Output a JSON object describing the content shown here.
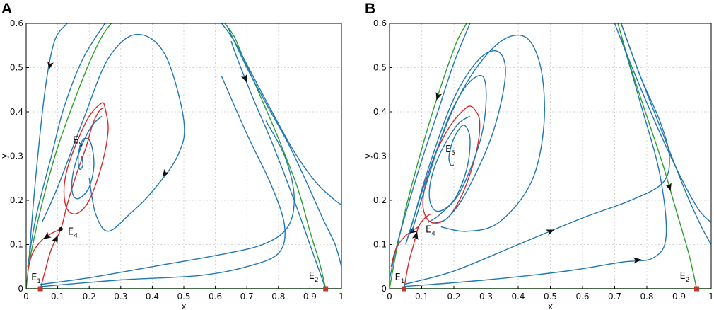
{
  "colors": {
    "trajectory": "#1f77b4",
    "separatrix_red": "#d62728",
    "separatrix_green": "#2ca02c",
    "equilibrium_marker": "#c0392b",
    "grid": "#c8c8c8",
    "axis": "#000000"
  },
  "chart_data": [
    {
      "panel": "A",
      "type": "line",
      "subtype": "phase-portrait",
      "xlabel": "x",
      "ylabel": "y",
      "xlim": [
        0,
        1
      ],
      "ylim": [
        0,
        0.6
      ],
      "xticks": [
        0,
        0.1,
        0.2,
        0.3,
        0.4,
        0.5,
        0.6,
        0.7,
        0.8,
        0.9,
        1
      ],
      "xtick_labels": [
        "0",
        "0.1",
        "0.2",
        "0.3",
        "0.4",
        "0.5",
        "0.6",
        "0.7",
        "0.8",
        "0.9",
        "1"
      ],
      "yticks": [
        0,
        0.1,
        0.2,
        0.3,
        0.4,
        0.5,
        0.6
      ],
      "ytick_labels": [
        "0",
        "0.1",
        "0.2",
        "0.3",
        "0.4",
        "0.5",
        "0.6"
      ],
      "grid": true,
      "annotations": [
        {
          "text": "E",
          "sub": "1",
          "target": [
            0.045,
            0.0
          ]
        },
        {
          "text": "E",
          "sub": "2",
          "target": [
            0.95,
            0.0
          ]
        },
        {
          "text": "E",
          "sub": "4",
          "target": [
            0.11,
            0.135
          ]
        },
        {
          "text": "E",
          "sub": "5",
          "target": [
            0.175,
            0.3
          ]
        }
      ],
      "equilibria": [
        {
          "name": "E1",
          "x": 0.045,
          "y": 0.0,
          "marker": "square"
        },
        {
          "name": "E2",
          "x": 0.95,
          "y": 0.0,
          "marker": "square"
        },
        {
          "name": "E4",
          "x": 0.11,
          "y": 0.135,
          "marker": "dot"
        }
      ],
      "series": [
        {
          "name": "trajectory-far-left",
          "color": "trajectory",
          "x": [
            0.01,
            0.03,
            0.06,
            0.09,
            0.13
          ],
          "y": [
            0.08,
            0.25,
            0.45,
            0.56,
            0.6
          ],
          "arrows": [
            {
              "at": 2,
              "dir": "backward"
            }
          ]
        },
        {
          "name": "trajectory-left-2",
          "color": "trajectory",
          "x": [
            0.005,
            0.02,
            0.04,
            0.08,
            0.12,
            0.18,
            0.25
          ],
          "y": [
            0.05,
            0.12,
            0.19,
            0.3,
            0.41,
            0.52,
            0.6
          ]
        },
        {
          "name": "green-separatrix-left",
          "color": "separatrix_green",
          "x": [
            0.0,
            0.01,
            0.03,
            0.06,
            0.1,
            0.15,
            0.2,
            0.24,
            0.27
          ],
          "y": [
            0.0,
            0.06,
            0.13,
            0.22,
            0.32,
            0.42,
            0.51,
            0.57,
            0.6
          ]
        },
        {
          "name": "red-manifold-E4",
          "color": "separatrix_red",
          "x": [
            0.045,
            0.06,
            0.08,
            0.11,
            0.13,
            0.16,
            0.19,
            0.21,
            0.23,
            0.245
          ],
          "y": [
            0.0,
            0.04,
            0.09,
            0.135,
            0.19,
            0.26,
            0.32,
            0.37,
            0.4,
            0.41
          ],
          "arrows": [
            {
              "at": 2,
              "dir": "forward"
            }
          ]
        },
        {
          "name": "red-manifold-E4-lower",
          "color": "separatrix_red",
          "x": [
            0.005,
            0.02,
            0.05,
            0.08,
            0.11
          ],
          "y": [
            0.04,
            0.08,
            0.11,
            0.125,
            0.135
          ],
          "arrows": [
            {
              "at": 2,
              "dir": "backward"
            }
          ]
        },
        {
          "name": "limit-cycle-red",
          "color": "separatrix_red",
          "x": [
            0.25,
            0.24,
            0.2,
            0.16,
            0.13,
            0.12,
            0.13,
            0.16,
            0.2,
            0.24,
            0.26,
            0.25
          ],
          "y": [
            0.41,
            0.42,
            0.39,
            0.33,
            0.27,
            0.22,
            0.18,
            0.17,
            0.2,
            0.28,
            0.36,
            0.41
          ]
        },
        {
          "name": "spiral-E5",
          "color": "trajectory",
          "x": [
            0.24,
            0.21,
            0.18,
            0.155,
            0.145,
            0.15,
            0.17,
            0.2,
            0.215,
            0.205,
            0.185,
            0.17,
            0.165,
            0.17,
            0.18,
            0.175
          ],
          "y": [
            0.39,
            0.37,
            0.33,
            0.28,
            0.24,
            0.21,
            0.205,
            0.23,
            0.28,
            0.33,
            0.34,
            0.32,
            0.29,
            0.27,
            0.28,
            0.3
          ]
        },
        {
          "name": "trajectory-large-loop",
          "color": "trajectory",
          "x": [
            0.05,
            0.1,
            0.18,
            0.26,
            0.35,
            0.44,
            0.5,
            0.48,
            0.4,
            0.33,
            0.26,
            0.22,
            0.2
          ],
          "y": [
            0.15,
            0.23,
            0.38,
            0.52,
            0.575,
            0.53,
            0.38,
            0.3,
            0.22,
            0.17,
            0.13,
            0.17,
            0.25
          ],
          "arrows": [
            {
              "at": 7,
              "dir": "forward"
            }
          ]
        },
        {
          "name": "trajectory-bottom-1",
          "color": "trajectory",
          "x": [
            0.045,
            0.2,
            0.4,
            0.6,
            0.75,
            0.83,
            0.85,
            0.82,
            0.76
          ],
          "y": [
            0.01,
            0.025,
            0.05,
            0.075,
            0.1,
            0.14,
            0.21,
            0.3,
            0.38
          ]
        },
        {
          "name": "trajectory-bottom-2",
          "color": "trajectory",
          "x": [
            0.045,
            0.3,
            0.55,
            0.7,
            0.8,
            0.82,
            0.78,
            0.7,
            0.62
          ],
          "y": [
            0.005,
            0.02,
            0.03,
            0.05,
            0.08,
            0.14,
            0.23,
            0.35,
            0.48
          ]
        },
        {
          "name": "green-separatrix-right",
          "color": "separatrix_green",
          "x": [
            0.95,
            0.93,
            0.9,
            0.86,
            0.8,
            0.74,
            0.69,
            0.66,
            0.63
          ],
          "y": [
            0.0,
            0.06,
            0.13,
            0.23,
            0.34,
            0.44,
            0.52,
            0.57,
            0.6
          ]
        },
        {
          "name": "trajectory-right-outer",
          "color": "trajectory",
          "x": [
            0.62,
            0.66,
            0.72,
            0.78,
            0.85,
            0.92,
            0.98,
            1.0
          ],
          "y": [
            0.6,
            0.56,
            0.48,
            0.4,
            0.31,
            0.24,
            0.2,
            0.19
          ]
        },
        {
          "name": "trajectory-right-inner",
          "color": "trajectory",
          "x": [
            0.64,
            0.7,
            0.76,
            0.83,
            0.89,
            0.94,
            0.98,
            1.0
          ],
          "y": [
            0.59,
            0.5,
            0.42,
            0.33,
            0.24,
            0.16,
            0.1,
            0.05
          ]
        },
        {
          "name": "trajectory-right-up",
          "color": "trajectory",
          "x": [
            0.95,
            0.9,
            0.85,
            0.78,
            0.72,
            0.67,
            0.65
          ],
          "y": [
            0.0,
            0.1,
            0.2,
            0.33,
            0.43,
            0.52,
            0.56
          ],
          "arrows": [
            {
              "at": 4,
              "dir": "backward"
            }
          ]
        },
        {
          "name": "x-axis-invariant",
          "color": "separatrix_green",
          "x": [
            0.0,
            0.045,
            0.5,
            0.95,
            1.0
          ],
          "y": [
            0.0,
            0.0,
            0.0,
            0.0,
            0.0
          ]
        }
      ]
    },
    {
      "panel": "B",
      "type": "line",
      "subtype": "phase-portrait",
      "xlabel": "x",
      "ylabel": "y",
      "xlim": [
        0,
        1
      ],
      "ylim": [
        0,
        0.6
      ],
      "xticks": [
        0,
        0.1,
        0.2,
        0.3,
        0.4,
        0.5,
        0.6,
        0.7,
        0.8,
        0.9,
        1
      ],
      "xtick_labels": [
        "0",
        "0.1",
        "0.2",
        "0.3",
        "0.4",
        "0.5",
        "0.6",
        "0.7",
        "0.8",
        "0.9",
        "1"
      ],
      "yticks": [
        0,
        0.1,
        0.2,
        0.3,
        0.4,
        0.5,
        0.6
      ],
      "ytick_labels": [
        "0",
        "0.1",
        "0.2",
        "0.3",
        "0.4",
        "0.5",
        "0.6"
      ],
      "grid": true,
      "annotations": [
        {
          "text": "E",
          "sub": "1",
          "target": [
            0.045,
            0.0
          ]
        },
        {
          "text": "E",
          "sub": "2",
          "target": [
            0.955,
            0.0
          ]
        },
        {
          "text": "E",
          "sub": "4",
          "target": [
            0.09,
            0.14
          ]
        },
        {
          "text": "E",
          "sub": "5",
          "target": [
            0.2,
            0.28
          ]
        }
      ],
      "equilibria": [
        {
          "name": "E1",
          "x": 0.045,
          "y": 0.0,
          "marker": "square"
        },
        {
          "name": "E2",
          "x": 0.955,
          "y": 0.0,
          "marker": "square"
        }
      ],
      "series": [
        {
          "name": "green-separatrix-left",
          "color": "separatrix_green",
          "x": [
            0.0,
            0.02,
            0.05,
            0.09,
            0.13,
            0.17,
            0.21,
            0.24
          ],
          "y": [
            0.0,
            0.08,
            0.18,
            0.29,
            0.39,
            0.48,
            0.56,
            0.6
          ],
          "arrows": [
            {
              "at": 4,
              "dir": "backward"
            }
          ]
        },
        {
          "name": "trajectory-left",
          "color": "trajectory",
          "x": [
            0.0,
            0.02,
            0.05,
            0.1,
            0.15,
            0.2,
            0.25
          ],
          "y": [
            0.02,
            0.09,
            0.17,
            0.29,
            0.4,
            0.51,
            0.6
          ]
        },
        {
          "name": "limit-cycle-red",
          "color": "separatrix_red",
          "x": [
            0.26,
            0.24,
            0.19,
            0.14,
            0.11,
            0.105,
            0.13,
            0.18,
            0.23,
            0.27,
            0.28,
            0.26
          ],
          "y": [
            0.41,
            0.41,
            0.37,
            0.3,
            0.23,
            0.18,
            0.15,
            0.16,
            0.22,
            0.31,
            0.38,
            0.41
          ]
        },
        {
          "name": "spiral-E5",
          "color": "trajectory",
          "x": [
            0.25,
            0.21,
            0.16,
            0.13,
            0.125,
            0.15,
            0.2,
            0.24,
            0.25,
            0.23,
            0.2,
            0.185,
            0.19,
            0.2
          ],
          "y": [
            0.39,
            0.37,
            0.31,
            0.25,
            0.2,
            0.175,
            0.2,
            0.27,
            0.34,
            0.37,
            0.34,
            0.3,
            0.28,
            0.28
          ]
        },
        {
          "name": "red-manifold-E4",
          "color": "separatrix_red",
          "x": [
            0.045,
            0.06,
            0.075,
            0.09,
            0.11,
            0.13
          ],
          "y": [
            0.0,
            0.06,
            0.1,
            0.14,
            0.16,
            0.17
          ],
          "arrows": [
            {
              "at": 2,
              "dir": "forward"
            }
          ]
        },
        {
          "name": "red-manifold-E4-lower",
          "color": "separatrix_red",
          "x": [
            0.005,
            0.02,
            0.05,
            0.09
          ],
          "y": [
            0.05,
            0.09,
            0.12,
            0.14
          ],
          "arrows": [
            {
              "at": 2,
              "dir": "backward"
            }
          ]
        },
        {
          "name": "trajectory-loop-1",
          "color": "trajectory",
          "x": [
            0.07,
            0.12,
            0.18,
            0.24,
            0.29,
            0.3,
            0.28,
            0.22,
            0.16,
            0.12
          ],
          "y": [
            0.13,
            0.25,
            0.38,
            0.46,
            0.48,
            0.42,
            0.33,
            0.22,
            0.17,
            0.15
          ]
        },
        {
          "name": "trajectory-loop-2",
          "color": "trajectory",
          "x": [
            0.06,
            0.12,
            0.2,
            0.28,
            0.34,
            0.36,
            0.32,
            0.24,
            0.18,
            0.14
          ],
          "y": [
            0.12,
            0.27,
            0.43,
            0.52,
            0.535,
            0.48,
            0.35,
            0.22,
            0.16,
            0.15
          ]
        },
        {
          "name": "trajectory-loop-3",
          "color": "trajectory",
          "x": [
            0.05,
            0.12,
            0.22,
            0.33,
            0.42,
            0.47,
            0.48,
            0.44,
            0.34,
            0.24,
            0.16
          ],
          "y": [
            0.1,
            0.26,
            0.44,
            0.55,
            0.57,
            0.5,
            0.37,
            0.24,
            0.15,
            0.13,
            0.14
          ]
        },
        {
          "name": "trajectory-large",
          "color": "trajectory",
          "x": [
            0.045,
            0.2,
            0.4,
            0.6,
            0.75,
            0.85,
            0.87,
            0.84,
            0.78,
            0.72
          ],
          "y": [
            0.01,
            0.04,
            0.1,
            0.16,
            0.2,
            0.24,
            0.3,
            0.38,
            0.48,
            0.6
          ],
          "arrows": [
            {
              "at": 2,
              "dir": "forward"
            }
          ]
        },
        {
          "name": "trajectory-bottom",
          "color": "trajectory",
          "x": [
            0.045,
            0.3,
            0.55,
            0.72,
            0.82,
            0.86,
            0.84,
            0.78,
            0.72
          ],
          "y": [
            0.005,
            0.02,
            0.04,
            0.06,
            0.07,
            0.12,
            0.26,
            0.42,
            0.57
          ],
          "arrows": [
            {
              "at": 3,
              "dir": "forward"
            }
          ]
        },
        {
          "name": "green-separatrix-right",
          "color": "separatrix_green",
          "x": [
            0.955,
            0.93,
            0.89,
            0.85,
            0.8,
            0.75,
            0.71
          ],
          "y": [
            0.0,
            0.08,
            0.18,
            0.28,
            0.39,
            0.5,
            0.6
          ],
          "arrows": [
            {
              "at": 2,
              "dir": "backward"
            }
          ]
        },
        {
          "name": "trajectory-right-1",
          "color": "trajectory",
          "x": [
            0.7,
            0.76,
            0.83,
            0.9,
            0.96,
            1.0
          ],
          "y": [
            0.6,
            0.49,
            0.37,
            0.26,
            0.18,
            0.15
          ]
        },
        {
          "name": "trajectory-right-2",
          "color": "trajectory",
          "x": [
            0.72,
            0.78,
            0.85,
            0.92,
            0.97,
            1.0
          ],
          "y": [
            0.6,
            0.48,
            0.35,
            0.22,
            0.14,
            0.1
          ]
        },
        {
          "name": "x-axis-invariant",
          "color": "separatrix_green",
          "x": [
            0.0,
            0.045,
            0.5,
            0.955,
            1.0
          ],
          "y": [
            0.0,
            0.0,
            0.0,
            0.0,
            0.0
          ]
        }
      ]
    }
  ],
  "panels": [
    {
      "letter": "A"
    },
    {
      "letter": "B"
    }
  ]
}
